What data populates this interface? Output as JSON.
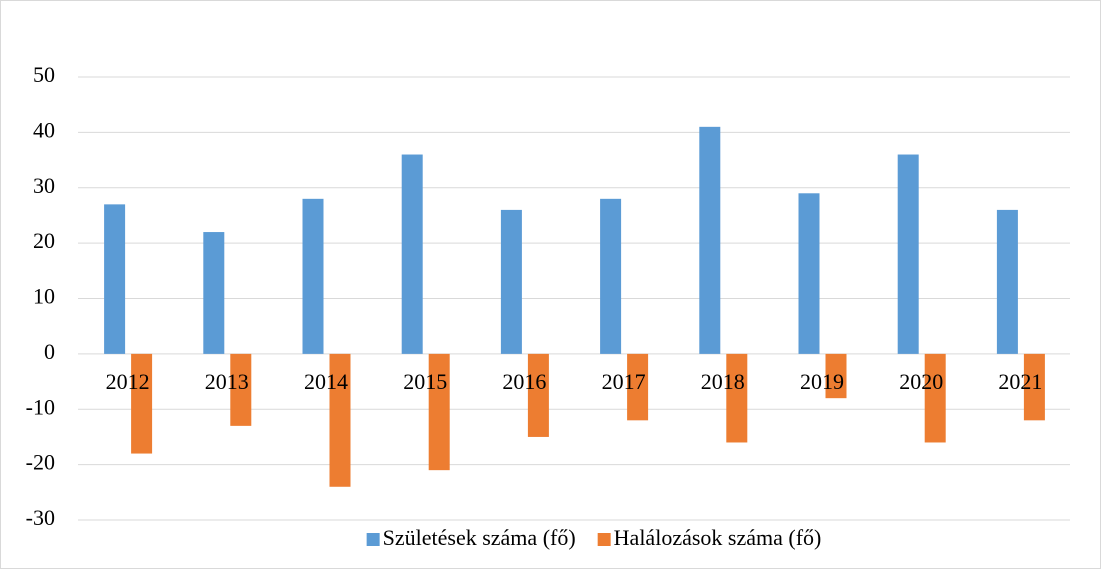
{
  "chart_data": {
    "type": "bar",
    "categories": [
      "2012",
      "2013",
      "2014",
      "2015",
      "2016",
      "2017",
      "2018",
      "2019",
      "2020",
      "2021"
    ],
    "series": [
      {
        "name": "Születések száma (fő)",
        "color": "#5b9bd5",
        "values": [
          27,
          22,
          28,
          36,
          26,
          28,
          41,
          29,
          36,
          26
        ]
      },
      {
        "name": "Halálozások száma (fő)",
        "color": "#ed7d31",
        "values": [
          -18,
          -13,
          -24,
          -21,
          -15,
          -12,
          -16,
          -8,
          -16,
          -12
        ]
      }
    ],
    "ylim": [
      -30,
      50
    ],
    "yticks": [
      -30,
      -20,
      -10,
      0,
      10,
      20,
      30,
      40,
      50
    ],
    "grid": true,
    "legend": "bottom"
  }
}
